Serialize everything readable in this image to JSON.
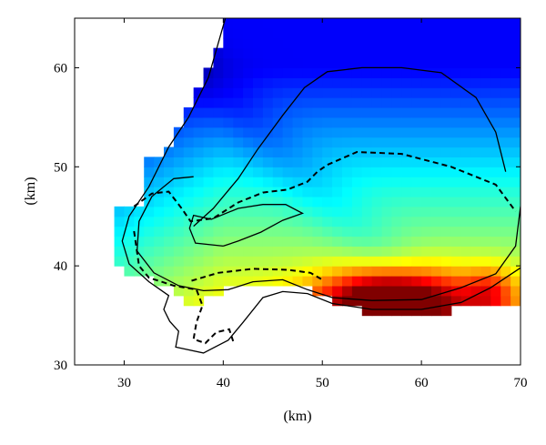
{
  "chart_data": {
    "type": "heatmap",
    "title": "",
    "xlabel": "(km)",
    "ylabel": "(km)",
    "xlim": [
      25,
      70
    ],
    "ylim": [
      30,
      65
    ],
    "xticks": [
      30,
      40,
      50,
      60,
      70
    ],
    "yticks": [
      30,
      40,
      50,
      60
    ],
    "grid": false,
    "legend": "none",
    "colormap": [
      "#00008f",
      "#0000ff",
      "#0080ff",
      "#00ffff",
      "#80ff80",
      "#ffff00",
      "#ff8000",
      "#ff0000",
      "#800000"
    ],
    "cell_size_km": 1,
    "field_description": "masked gridded field, color encodes magnitude (jet colormap)",
    "contours": [
      {
        "style": "solid",
        "level": "outer"
      },
      {
        "style": "solid",
        "level": "middle"
      },
      {
        "style": "dashed",
        "level": "reference"
      },
      {
        "style": "solid",
        "level": "inner"
      }
    ]
  }
}
